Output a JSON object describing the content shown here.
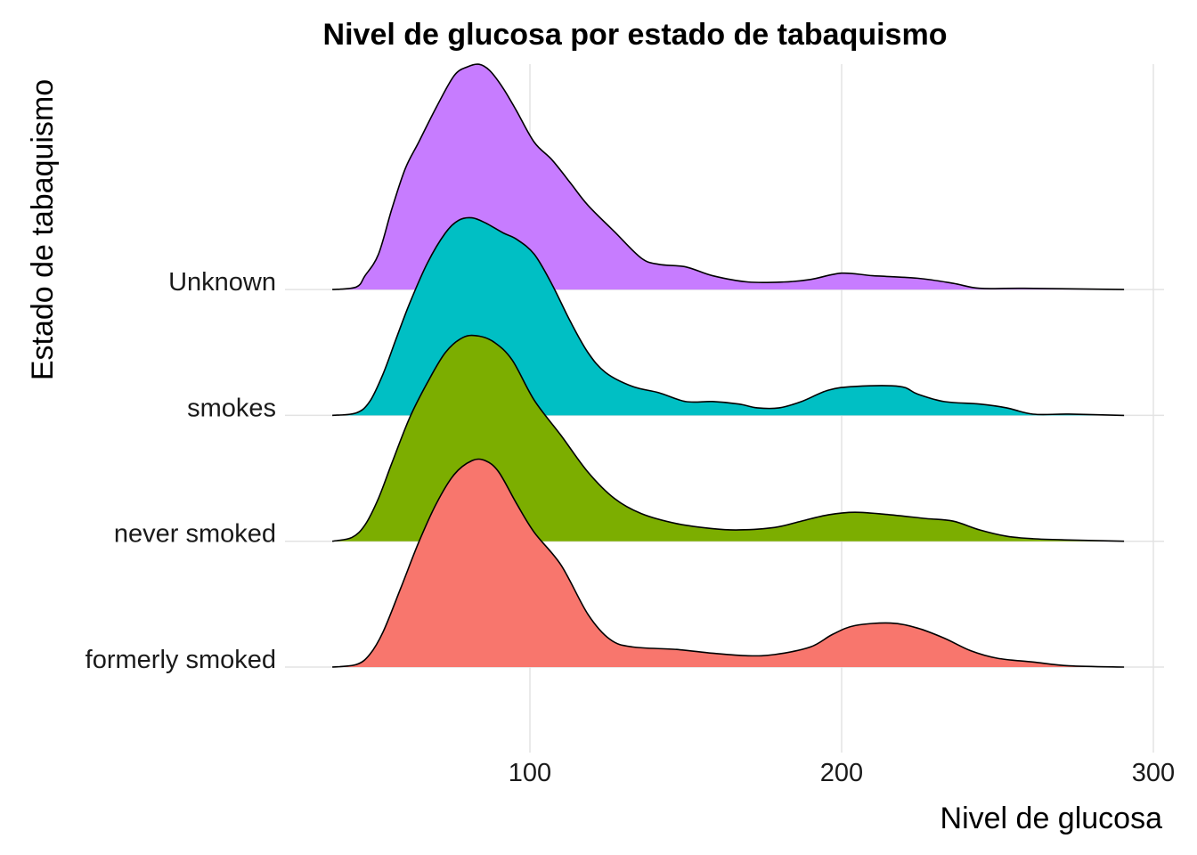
{
  "chart_data": {
    "type": "ridgeline",
    "title": "Nivel de glucosa por estado de tabaquismo",
    "xlabel": "Nivel de glucosa",
    "ylabel": "Estado de tabaquismo",
    "xlim": [
      0,
      305
    ],
    "x_ticks": [
      100,
      200,
      300
    ],
    "grid": true,
    "legend": "none",
    "density_unit": "relative height (1 = spacing between rows)",
    "series": [
      {
        "name": "formerly smoked",
        "color": "#F8766D",
        "x": [
          36.6,
          44.3,
          48.6,
          52.9,
          58.6,
          64.3,
          70,
          75.7,
          81.4,
          85.7,
          90,
          95.7,
          101.4,
          110,
          118.6,
          125.7,
          132.9,
          147.1,
          158.6,
          170,
          178.6,
          190,
          197.1,
          204.3,
          215.7,
          224.3,
          232.9,
          241.4,
          250,
          261.4,
          272.9,
          290.6
        ],
        "density": [
          0,
          0.02,
          0.1,
          0.28,
          0.63,
          0.99,
          1.3,
          1.53,
          1.64,
          1.64,
          1.55,
          1.3,
          1.07,
          0.81,
          0.42,
          0.22,
          0.16,
          0.14,
          0.11,
          0.09,
          0.1,
          0.16,
          0.26,
          0.33,
          0.35,
          0.31,
          0.23,
          0.13,
          0.07,
          0.04,
          0.01,
          0
        ]
      },
      {
        "name": "never smoked",
        "color": "#7CAE00",
        "x": [
          36.6,
          42.9,
          47.1,
          51.4,
          55.7,
          61.4,
          67.1,
          72.9,
          78.6,
          83.7,
          88.6,
          94.3,
          101.4,
          110,
          118.6,
          127.1,
          135.7,
          147.1,
          158.6,
          167.1,
          178.6,
          187.1,
          195.7,
          204.3,
          215.7,
          227.1,
          235.7,
          244.3,
          252.9,
          261.4,
          272.9,
          290.6
        ],
        "density": [
          0,
          0.03,
          0.13,
          0.34,
          0.62,
          0.98,
          1.26,
          1.5,
          1.62,
          1.63,
          1.58,
          1.44,
          1.12,
          0.84,
          0.55,
          0.34,
          0.22,
          0.14,
          0.1,
          0.09,
          0.11,
          0.16,
          0.21,
          0.23,
          0.21,
          0.18,
          0.16,
          0.09,
          0.04,
          0.02,
          0.01,
          0
        ]
      },
      {
        "name": "smokes",
        "color": "#00BFC4",
        "x": [
          36.6,
          44.3,
          48.6,
          52.9,
          57.1,
          61.4,
          67.1,
          72.9,
          77.1,
          81.4,
          85.7,
          91.4,
          95.7,
          101.4,
          107.1,
          112.9,
          118.6,
          124.3,
          132.9,
          141.4,
          150,
          158.6,
          167.1,
          172.9,
          180,
          187.1,
          195.7,
          204.3,
          218.6,
          224.3,
          232.9,
          244.3,
          252.9,
          261.4,
          272.9,
          290.6
        ],
        "density": [
          0,
          0.02,
          0.11,
          0.33,
          0.61,
          0.89,
          1.21,
          1.45,
          1.55,
          1.57,
          1.53,
          1.45,
          1.4,
          1.28,
          1.04,
          0.75,
          0.5,
          0.34,
          0.23,
          0.18,
          0.11,
          0.11,
          0.09,
          0.06,
          0.06,
          0.11,
          0.2,
          0.23,
          0.23,
          0.17,
          0.11,
          0.09,
          0.06,
          0.01,
          0.01,
          0
        ]
      },
      {
        "name": "Unknown",
        "color": "#C77CFF",
        "x": [
          36.6,
          44.3,
          47.1,
          51.4,
          55.7,
          60,
          64.3,
          70,
          75.7,
          80,
          83.7,
          87.1,
          91.4,
          95.7,
          101.4,
          107.1,
          112.9,
          118.6,
          127.1,
          135.7,
          141.4,
          150,
          158.6,
          170,
          181.4,
          190,
          200,
          210,
          224.3,
          235.7,
          244.3,
          258.6,
          290.6
        ],
        "density": [
          0,
          0.02,
          0.11,
          0.28,
          0.64,
          0.96,
          1.17,
          1.45,
          1.7,
          1.77,
          1.79,
          1.74,
          1.6,
          1.42,
          1.17,
          1.03,
          0.85,
          0.67,
          0.46,
          0.25,
          0.2,
          0.18,
          0.11,
          0.06,
          0.06,
          0.08,
          0.13,
          0.11,
          0.09,
          0.05,
          0.01,
          0.01,
          0
        ]
      }
    ]
  }
}
